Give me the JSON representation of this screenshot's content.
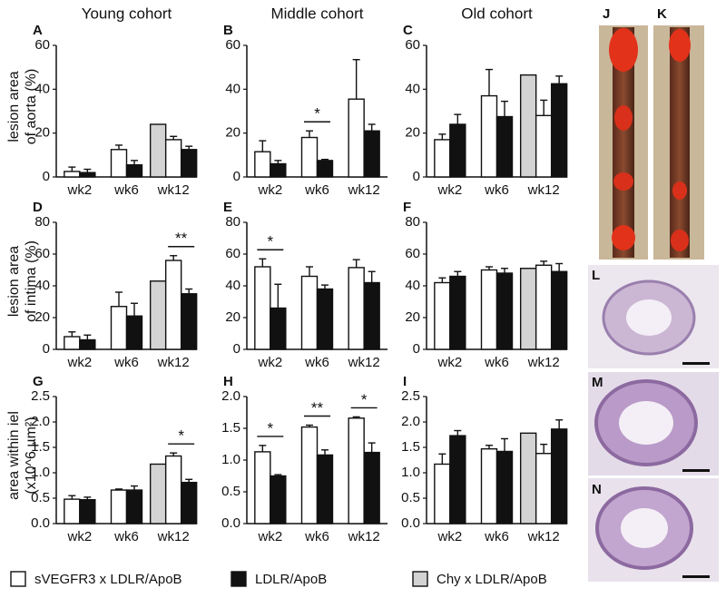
{
  "chart_data": [
    {
      "type": "bar",
      "panel": "A",
      "column_title": "Young cohort",
      "ylabel": [
        "lesion area",
        "of aorta (%)"
      ],
      "categories": [
        "wk2",
        "wk6",
        "wk12"
      ],
      "ylim": [
        0,
        60
      ],
      "yticks": [
        0,
        20,
        40,
        60
      ],
      "series": [
        {
          "name": "sVEGFR3 x LDLR/ApoB",
          "color": "#ffffff",
          "values": [
            2.5,
            12.5,
            17
          ],
          "errors": [
            2,
            2,
            1.5
          ]
        },
        {
          "name": "LDLR/ApoB",
          "color": "#111111",
          "values": [
            2,
            5.5,
            12.5
          ],
          "errors": [
            1.5,
            2,
            1.5
          ]
        },
        {
          "name": "Chy x LDLR/ApoB",
          "color": "#d3d3d3",
          "values": [
            null,
            null,
            24
          ],
          "errors": [
            null,
            null,
            null
          ]
        }
      ],
      "significance": [
        null,
        null,
        null
      ]
    },
    {
      "type": "bar",
      "panel": "B",
      "column_title": "Middle cohort",
      "categories": [
        "wk2",
        "wk6",
        "wk12"
      ],
      "ylim": [
        0,
        60
      ],
      "yticks": [
        0,
        20,
        40,
        60
      ],
      "series": [
        {
          "name": "sVEGFR3 x LDLR/ApoB",
          "color": "#ffffff",
          "values": [
            11.5,
            18,
            35.5
          ],
          "errors": [
            5,
            3,
            18
          ]
        },
        {
          "name": "LDLR/ApoB",
          "color": "#111111",
          "values": [
            6,
            7.5,
            21
          ],
          "errors": [
            1.5,
            0.5,
            3
          ]
        }
      ],
      "significance": [
        null,
        "*",
        null
      ]
    },
    {
      "type": "bar",
      "panel": "C",
      "column_title": "Old cohort",
      "categories": [
        "wk2",
        "wk6",
        "wk12"
      ],
      "ylim": [
        0,
        60
      ],
      "yticks": [
        0,
        20,
        40,
        60
      ],
      "series": [
        {
          "name": "sVEGFR3 x LDLR/ApoB",
          "color": "#ffffff",
          "values": [
            17,
            37,
            28
          ],
          "errors": [
            2.5,
            12,
            7
          ]
        },
        {
          "name": "LDLR/ApoB",
          "color": "#111111",
          "values": [
            24,
            27.5,
            42.5
          ],
          "errors": [
            4.5,
            7,
            3.5
          ]
        },
        {
          "name": "Chy x LDLR/ApoB",
          "color": "#d3d3d3",
          "values": [
            null,
            null,
            46.5
          ],
          "errors": [
            null,
            null,
            null
          ]
        }
      ],
      "significance": [
        null,
        null,
        null
      ]
    },
    {
      "type": "bar",
      "panel": "D",
      "ylabel": [
        "lesion area",
        "of intima (%)"
      ],
      "categories": [
        "wk2",
        "wk6",
        "wk12"
      ],
      "ylim": [
        0,
        80
      ],
      "yticks": [
        0,
        20,
        40,
        60,
        80
      ],
      "series": [
        {
          "name": "sVEGFR3 x LDLR/ApoB",
          "color": "#ffffff",
          "values": [
            8,
            27,
            56
          ],
          "errors": [
            3,
            9,
            3
          ]
        },
        {
          "name": "LDLR/ApoB",
          "color": "#111111",
          "values": [
            6,
            21,
            35
          ],
          "errors": [
            3,
            8,
            3
          ]
        },
        {
          "name": "Chy x LDLR/ApoB",
          "color": "#d3d3d3",
          "values": [
            null,
            null,
            43
          ],
          "errors": [
            null,
            null,
            null
          ]
        }
      ],
      "significance": [
        null,
        null,
        "**"
      ]
    },
    {
      "type": "bar",
      "panel": "E",
      "categories": [
        "wk2",
        "wk6",
        "wk12"
      ],
      "ylim": [
        0,
        80
      ],
      "yticks": [
        0,
        20,
        40,
        60,
        80
      ],
      "series": [
        {
          "name": "sVEGFR3 x LDLR/ApoB",
          "color": "#ffffff",
          "values": [
            52,
            46,
            51.5
          ],
          "errors": [
            5,
            6,
            5
          ]
        },
        {
          "name": "LDLR/ApoB",
          "color": "#111111",
          "values": [
            26,
            38,
            42
          ],
          "errors": [
            15,
            2.5,
            7
          ]
        }
      ],
      "significance": [
        "*",
        null,
        null
      ]
    },
    {
      "type": "bar",
      "panel": "F",
      "categories": [
        "wk2",
        "wk6",
        "wk12"
      ],
      "ylim": [
        0,
        80
      ],
      "yticks": [
        0,
        20,
        40,
        60,
        80
      ],
      "series": [
        {
          "name": "sVEGFR3 x LDLR/ApoB",
          "color": "#ffffff",
          "values": [
            42,
            50,
            53
          ],
          "errors": [
            3,
            2,
            2.5
          ]
        },
        {
          "name": "LDLR/ApoB",
          "color": "#111111",
          "values": [
            46,
            48,
            49
          ],
          "errors": [
            3,
            3,
            5
          ]
        },
        {
          "name": "Chy x LDLR/ApoB",
          "color": "#d3d3d3",
          "values": [
            null,
            null,
            51
          ],
          "errors": [
            null,
            null,
            null
          ]
        }
      ],
      "significance": [
        null,
        null,
        null
      ]
    },
    {
      "type": "bar",
      "panel": "G",
      "ylabel": [
        "area within iel",
        "(x10^6 µm²)"
      ],
      "categories": [
        "wk2",
        "wk6",
        "wk12"
      ],
      "ylim": [
        0,
        2.5
      ],
      "yticks": [
        {
          "value": 0,
          "label": "0.0"
        },
        0.5,
        {
          "value": 1,
          "label": "1.0"
        },
        1.5,
        {
          "value": 2,
          "label": "2.0"
        },
        2.5
      ],
      "series": [
        {
          "name": "sVEGFR3 x LDLR/ApoB",
          "color": "#ffffff",
          "values": [
            0.48,
            0.66,
            1.33
          ],
          "errors": [
            0.07,
            0.02,
            0.06
          ]
        },
        {
          "name": "LDLR/ApoB",
          "color": "#111111",
          "values": [
            0.47,
            0.66,
            0.81
          ],
          "errors": [
            0.05,
            0.08,
            0.06
          ]
        },
        {
          "name": "Chy x LDLR/ApoB",
          "color": "#d3d3d3",
          "values": [
            null,
            null,
            1.17
          ],
          "errors": [
            null,
            null,
            null
          ]
        }
      ],
      "significance": [
        null,
        null,
        "*"
      ]
    },
    {
      "type": "bar",
      "panel": "H",
      "categories": [
        "wk2",
        "wk6",
        "wk12"
      ],
      "ylim": [
        0,
        2
      ],
      "yticks": [
        {
          "value": 0,
          "label": "0.0"
        },
        0.5,
        {
          "value": 1,
          "label": "1.0"
        },
        1.5,
        {
          "value": 2,
          "label": "2.0"
        }
      ],
      "series": [
        {
          "name": "sVEGFR3 x LDLR/ApoB",
          "color": "#ffffff",
          "values": [
            1.13,
            1.52,
            1.66
          ],
          "errors": [
            0.1,
            0.03,
            0.02
          ]
        },
        {
          "name": "LDLR/ApoB",
          "color": "#111111",
          "values": [
            0.75,
            1.08,
            1.12
          ],
          "errors": [
            0.02,
            0.08,
            0.15
          ]
        }
      ],
      "significance": [
        "*",
        "**",
        "*"
      ]
    },
    {
      "type": "bar",
      "panel": "I",
      "categories": [
        "wk2",
        "wk6",
        "wk12"
      ],
      "ylim": [
        0,
        2.5
      ],
      "yticks": [
        {
          "value": 0,
          "label": "0.0"
        },
        0.5,
        {
          "value": 1,
          "label": "1.0"
        },
        1.5,
        {
          "value": 2,
          "label": "2.0"
        },
        2.5
      ],
      "series": [
        {
          "name": "sVEGFR3 x LDLR/ApoB",
          "color": "#ffffff",
          "values": [
            1.17,
            1.47,
            1.38
          ],
          "errors": [
            0.2,
            0.07,
            0.18
          ]
        },
        {
          "name": "LDLR/ApoB",
          "color": "#111111",
          "values": [
            1.73,
            1.42,
            1.86
          ],
          "errors": [
            0.1,
            0.25,
            0.18
          ]
        },
        {
          "name": "Chy x LDLR/ApoB",
          "color": "#d3d3d3",
          "values": [
            null,
            null,
            1.78
          ],
          "errors": [
            null,
            null,
            null
          ]
        }
      ],
      "significance": [
        null,
        null,
        null
      ]
    }
  ],
  "image_panels": [
    "J",
    "K",
    "L",
    "M",
    "N"
  ]
}
